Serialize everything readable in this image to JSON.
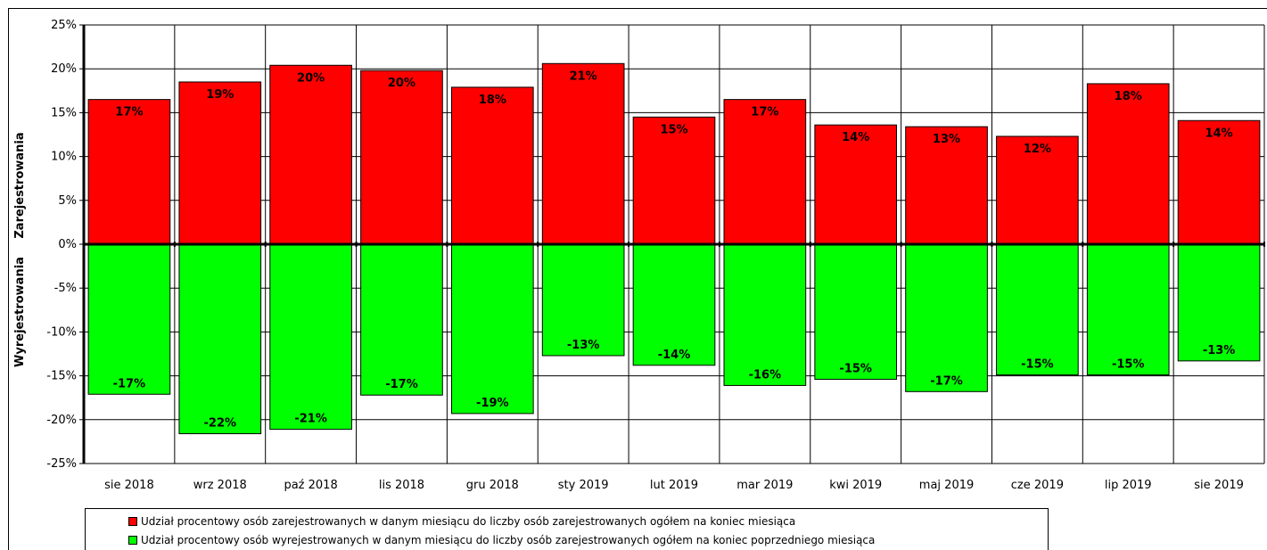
{
  "chart_data": {
    "type": "bar",
    "title": "",
    "ylabel_positive": "Zarejestrowania",
    "ylabel_negative": "Wyrejestrowania",
    "ylim": [
      -25,
      25
    ],
    "yticks": [
      25,
      20,
      15,
      10,
      5,
      0,
      -5,
      -10,
      -15,
      -20,
      -25
    ],
    "ytick_labels": [
      "25%",
      "20%",
      "15%",
      "10%",
      "5%",
      "0%",
      "-5%",
      "-10%",
      "-15%",
      "-20%",
      "-25%"
    ],
    "grid": true,
    "legend_position": "bottom",
    "categories": [
      "sie 2018",
      "wrz 2018",
      "paź 2018",
      "lis 2018",
      "gru 2018",
      "sty 2019",
      "lut 2019",
      "mar 2019",
      "kwi 2019",
      "maj 2019",
      "cze 2019",
      "lip 2019",
      "sie 2019"
    ],
    "series": [
      {
        "name": "Udział procentowy osób zarejestrowanych w danym miesiącu do liczby osób zarejestrowanych ogółem na koniec miesiąca",
        "color": "#ff0000",
        "values": [
          16.5,
          18.5,
          20.4,
          19.8,
          17.9,
          20.6,
          14.5,
          16.5,
          13.6,
          13.4,
          12.3,
          18.3,
          14.1
        ],
        "labels": [
          "17%",
          "19%",
          "20%",
          "20%",
          "18%",
          "21%",
          "15%",
          "17%",
          "14%",
          "13%",
          "12%",
          "18%",
          "14%"
        ]
      },
      {
        "name": "Udział procentowy osób wyrejestrowanych w danym miesiącu do liczby osób zarejestrowanych ogółem na koniec poprzedniego miesiąca",
        "color": "#00ff00",
        "values": [
          -17.1,
          -21.6,
          -21.1,
          -17.2,
          -19.3,
          -12.7,
          -13.8,
          -16.1,
          -15.4,
          -16.8,
          -14.9,
          -14.9,
          -13.3
        ],
        "labels": [
          "-17%",
          "-22%",
          "-21%",
          "-17%",
          "-19%",
          "-13%",
          "-14%",
          "-16%",
          "-15%",
          "-17%",
          "-15%",
          "-15%",
          "-13%"
        ]
      }
    ]
  }
}
